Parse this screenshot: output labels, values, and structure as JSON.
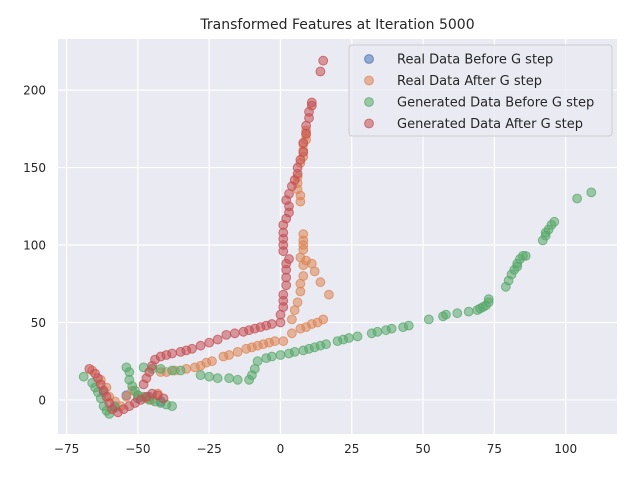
{
  "chart_data": {
    "type": "scatter",
    "title": "Transformed Features at Iteration 5000",
    "xlabel": "",
    "ylabel": "",
    "xlim": [
      -78,
      118
    ],
    "ylim": [
      -22,
      233
    ],
    "xticks": [
      -75,
      -50,
      -25,
      0,
      25,
      50,
      75,
      100
    ],
    "yticks": [
      0,
      50,
      100,
      150,
      200
    ],
    "xtick_labels": [
      "−75",
      "−50",
      "−25",
      "0",
      "25",
      "50",
      "75",
      "100"
    ],
    "ytick_labels": [
      "0",
      "50",
      "100",
      "150",
      "200"
    ],
    "grid": true,
    "legend_position": "top-right",
    "series": [
      {
        "name": "Real Data Before G step",
        "color": "#4c72b0",
        "points": [
          [
            -62,
            5
          ],
          [
            -58,
            -4
          ],
          [
            -54,
            3
          ],
          [
            -50,
            1
          ],
          [
            -46,
            2
          ],
          [
            -42,
            -1
          ]
        ]
      },
      {
        "name": "Real Data After G step",
        "color": "#dd8452",
        "points": [
          [
            -66,
            19
          ],
          [
            -63,
            13
          ],
          [
            -61,
            8
          ],
          [
            -60,
            2
          ],
          [
            -58,
            -1
          ],
          [
            -56,
            -4
          ],
          [
            -54,
            2
          ],
          [
            -52,
            6
          ],
          [
            -50,
            3
          ],
          [
            -47,
            1
          ],
          [
            -45,
            0
          ],
          [
            -43,
            4
          ],
          [
            -42,
            18
          ],
          [
            -40,
            18
          ],
          [
            -37,
            19
          ],
          [
            -33,
            20
          ],
          [
            -30,
            21
          ],
          [
            -28,
            22
          ],
          [
            -26,
            24
          ],
          [
            -24,
            25
          ],
          [
            -20,
            28
          ],
          [
            -18,
            29
          ],
          [
            -15,
            31
          ],
          [
            -12,
            33
          ],
          [
            -10,
            34
          ],
          [
            -8,
            35
          ],
          [
            -6,
            36
          ],
          [
            -4,
            37
          ],
          [
            -2,
            38
          ],
          [
            1,
            38
          ],
          [
            4,
            43
          ],
          [
            7,
            46
          ],
          [
            9,
            47
          ],
          [
            11,
            49
          ],
          [
            13,
            50
          ],
          [
            15,
            52
          ],
          [
            4,
            52
          ],
          [
            5,
            58
          ],
          [
            6,
            63
          ],
          [
            7,
            70
          ],
          [
            7,
            75
          ],
          [
            8,
            80
          ],
          [
            8,
            87
          ],
          [
            9,
            90
          ],
          [
            11,
            88
          ],
          [
            12,
            83
          ],
          [
            14,
            76
          ],
          [
            17,
            68
          ],
          [
            7,
            92
          ],
          [
            8,
            97
          ],
          [
            8,
            100
          ],
          [
            8,
            103
          ],
          [
            8,
            107
          ],
          [
            7,
            128
          ],
          [
            7,
            132
          ],
          [
            6,
            136
          ],
          [
            6,
            140
          ],
          [
            6,
            144
          ],
          [
            7,
            153
          ],
          [
            8,
            157
          ],
          [
            8,
            161
          ],
          [
            8,
            165
          ],
          [
            9,
            168
          ],
          [
            9,
            171
          ],
          [
            9,
            174
          ]
        ]
      },
      {
        "name": "Generated Data Before G step",
        "color": "#55a868",
        "points": [
          [
            -69,
            15
          ],
          [
            -66,
            11
          ],
          [
            -65,
            8
          ],
          [
            -64,
            5
          ],
          [
            -63,
            1
          ],
          [
            -62,
            -4
          ],
          [
            -61,
            -7
          ],
          [
            -60,
            -9
          ],
          [
            -58,
            -5
          ],
          [
            -54,
            21
          ],
          [
            -53,
            18
          ],
          [
            -53,
            13
          ],
          [
            -52,
            9
          ],
          [
            -51,
            6
          ],
          [
            -50,
            3
          ],
          [
            -48,
            2
          ],
          [
            -46,
            0
          ],
          [
            -44,
            -1
          ],
          [
            -42,
            -2
          ],
          [
            -40,
            -3
          ],
          [
            -38,
            -4
          ],
          [
            -48,
            21
          ],
          [
            -45,
            20
          ],
          [
            -42,
            20
          ],
          [
            -38,
            19
          ],
          [
            -35,
            19
          ],
          [
            -28,
            16
          ],
          [
            -25,
            15
          ],
          [
            -22,
            14
          ],
          [
            -18,
            14
          ],
          [
            -15,
            13
          ],
          [
            -11,
            13
          ],
          [
            -10,
            16
          ],
          [
            -9,
            20
          ],
          [
            -8,
            25
          ],
          [
            -5,
            27
          ],
          [
            -3,
            28
          ],
          [
            0,
            29
          ],
          [
            3,
            30
          ],
          [
            5,
            31
          ],
          [
            8,
            32
          ],
          [
            10,
            33
          ],
          [
            12,
            34
          ],
          [
            14,
            35
          ],
          [
            16,
            36
          ],
          [
            20,
            38
          ],
          [
            22,
            39
          ],
          [
            24,
            40
          ],
          [
            27,
            41
          ],
          [
            32,
            43
          ],
          [
            34,
            44
          ],
          [
            37,
            45
          ],
          [
            39,
            46
          ],
          [
            43,
            47
          ],
          [
            45,
            48
          ],
          [
            52,
            52
          ],
          [
            57,
            54
          ],
          [
            58,
            55
          ],
          [
            62,
            56
          ],
          [
            66,
            57
          ],
          [
            69,
            58
          ],
          [
            70,
            59
          ],
          [
            71,
            60
          ],
          [
            72,
            61
          ],
          [
            73,
            63
          ],
          [
            73,
            65
          ],
          [
            79,
            73
          ],
          [
            80,
            77
          ],
          [
            81,
            81
          ],
          [
            82,
            84
          ],
          [
            83,
            86
          ],
          [
            83,
            88
          ],
          [
            84,
            91
          ],
          [
            85,
            93
          ],
          [
            86,
            93
          ],
          [
            92,
            103
          ],
          [
            93,
            106
          ],
          [
            93,
            108
          ],
          [
            94,
            110
          ],
          [
            95,
            113
          ],
          [
            96,
            115
          ],
          [
            104,
            130
          ],
          [
            109,
            134
          ]
        ]
      },
      {
        "name": "Generated Data After G step",
        "color": "#c44e52",
        "points": [
          [
            -67,
            20
          ],
          [
            -65,
            17
          ],
          [
            -64,
            14
          ],
          [
            -63,
            10
          ],
          [
            -62,
            6
          ],
          [
            -61,
            2
          ],
          [
            -60,
            -2
          ],
          [
            -59,
            -6
          ],
          [
            -57,
            -8
          ],
          [
            -55,
            -6
          ],
          [
            -53,
            -4
          ],
          [
            -51,
            -2
          ],
          [
            -49,
            0
          ],
          [
            -47,
            2
          ],
          [
            -45,
            4
          ],
          [
            -43,
            3
          ],
          [
            -41,
            1
          ],
          [
            -48,
            10
          ],
          [
            -47,
            14
          ],
          [
            -46,
            18
          ],
          [
            -45,
            22
          ],
          [
            -44,
            26
          ],
          [
            -42,
            28
          ],
          [
            -40,
            29
          ],
          [
            -38,
            30
          ],
          [
            -35,
            31
          ],
          [
            -33,
            32
          ],
          [
            -31,
            33
          ],
          [
            -28,
            35
          ],
          [
            -25,
            37
          ],
          [
            -22,
            39
          ],
          [
            -19,
            42
          ],
          [
            -16,
            43
          ],
          [
            -13,
            44
          ],
          [
            -11,
            45
          ],
          [
            -9,
            46
          ],
          [
            -7,
            47
          ],
          [
            -5,
            48
          ],
          [
            -3,
            49
          ],
          [
            0,
            50
          ],
          [
            0,
            55
          ],
          [
            1,
            60
          ],
          [
            1,
            64
          ],
          [
            1,
            68
          ],
          [
            2,
            74
          ],
          [
            2,
            79
          ],
          [
            2,
            84
          ],
          [
            2,
            88
          ],
          [
            3,
            91
          ],
          [
            1,
            96
          ],
          [
            1,
            100
          ],
          [
            1,
            104
          ],
          [
            1,
            108
          ],
          [
            1,
            113
          ],
          [
            2,
            117
          ],
          [
            3,
            121
          ],
          [
            3,
            125
          ],
          [
            2,
            129
          ],
          [
            3,
            133
          ],
          [
            4,
            138
          ],
          [
            5,
            142
          ],
          [
            6,
            146
          ],
          [
            6,
            150
          ],
          [
            7,
            155
          ],
          [
            8,
            160
          ],
          [
            8,
            166
          ],
          [
            9,
            172
          ],
          [
            9,
            177
          ],
          [
            10,
            182
          ],
          [
            10,
            186
          ],
          [
            11,
            190
          ],
          [
            11,
            192
          ],
          [
            14,
            212
          ],
          [
            15,
            219
          ]
        ]
      }
    ]
  }
}
